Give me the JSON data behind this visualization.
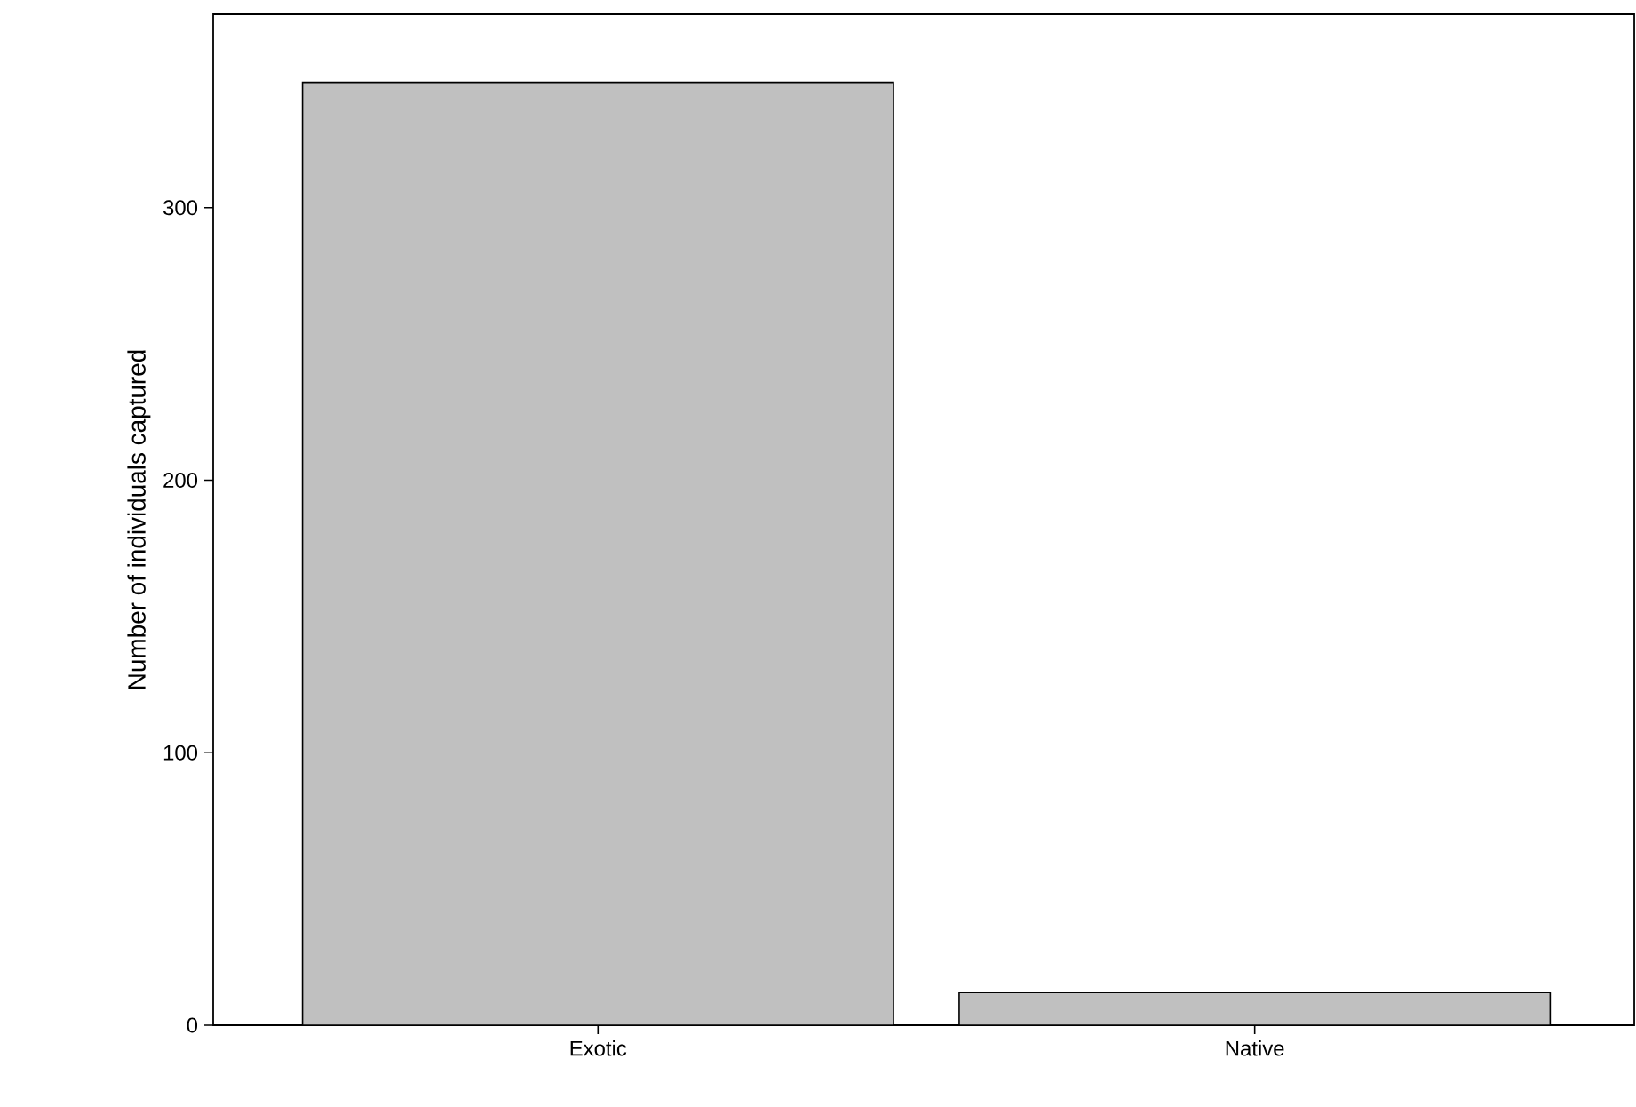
{
  "chart_data": {
    "type": "bar",
    "ylabel": "Number of individuals captured",
    "categories": [
      "Exotic",
      "Native"
    ],
    "values": [
      346,
      12
    ],
    "color": "#c0c0c0",
    "ylim": [
      0,
      371
    ],
    "yticks": [
      0,
      100,
      200,
      300
    ],
    "grid": false
  }
}
